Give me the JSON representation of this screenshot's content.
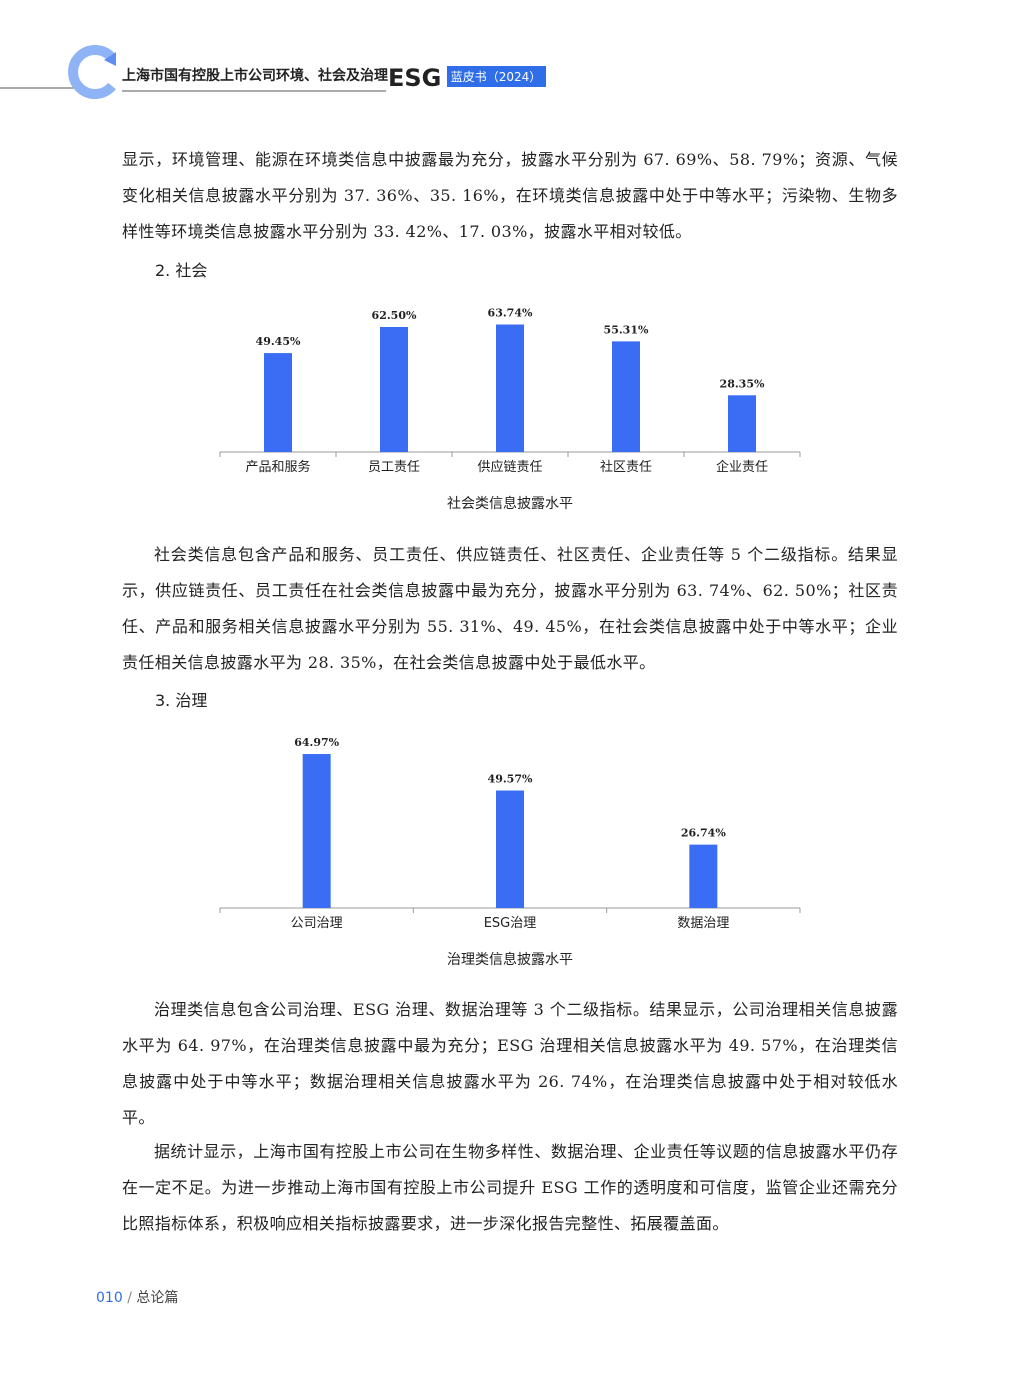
{
  "header": {
    "title": "上海市国有控股上市公司环境、社会及治理",
    "esg": "ESG",
    "badge": "蓝皮书（2024）"
  },
  "paragraphs": [
    "显示，环境管理、能源在环境类信息中披露最为充分，披露水平分别为 67. 69%、58. 79%；资源、气候变化相关信息披露水平分别为 37. 36%、35. 16%，在环境类信息披露中处于中等水平；污染物、生物多样性等环境类信息披露水平分别为 33. 42%、17. 03%，披露水平相对较低。",
    "社会类信息包含产品和服务、员工责任、供应链责任、社区责任、企业责任等 5 个二级指标。结果显示，供应链责任、员工责任在社会类信息披露中最为充分，披露水平分别为 63. 74%、62. 50%；社区责任、产品和服务相关信息披露水平分别为 55. 31%、49. 45%，在社会类信息披露中处于中等水平；企业责任相关信息披露水平为 28. 35%，在社会类信息披露中处于最低水平。",
    "治理类信息包含公司治理、ESG 治理、数据治理等 3 个二级指标。结果显示，公司治理相关信息披露水平为 64. 97%，在治理类信息披露中最为充分；ESG 治理相关信息披露水平为 49. 57%，在治理类信息披露中处于中等水平；数据治理相关信息披露水平为 26. 74%，在治理类信息披露中处于相对较低水平。",
    "据统计显示，上海市国有控股上市公司在生物多样性、数据治理、企业责任等议题的信息披露水平仍存在一定不足。为进一步推动上海市国有控股上市公司提升 ESG 工作的透明度和可信度，监管企业还需充分比照指标体系，积极响应相关指标披露要求，进一步深化报告完整性、拓展覆盖面。"
  ],
  "headings": [
    "2. 社会",
    "3. 治理"
  ],
  "chart_data": [
    {
      "type": "bar",
      "title": "社会类信息披露水平",
      "color": "#3a6cf4",
      "categories": [
        "产品和服务",
        "员工责任",
        "供应链责任",
        "社区责任",
        "企业责任"
      ],
      "values": [
        49.45,
        62.5,
        63.74,
        55.31,
        28.35
      ],
      "value_labels": [
        "49.45%",
        "62.50%",
        "63.74%",
        "55.31%",
        "28.35%"
      ]
    },
    {
      "type": "bar",
      "title": "治理类信息披露水平",
      "color": "#3a6cf4",
      "categories": [
        "公司治理",
        "ESG治理",
        "数据治理"
      ],
      "values": [
        64.97,
        49.57,
        26.74
      ],
      "value_labels": [
        "64.97%",
        "49.57%",
        "26.74%"
      ]
    }
  ],
  "footer": {
    "page": "010",
    "separator": "/",
    "section": "总论篇"
  }
}
